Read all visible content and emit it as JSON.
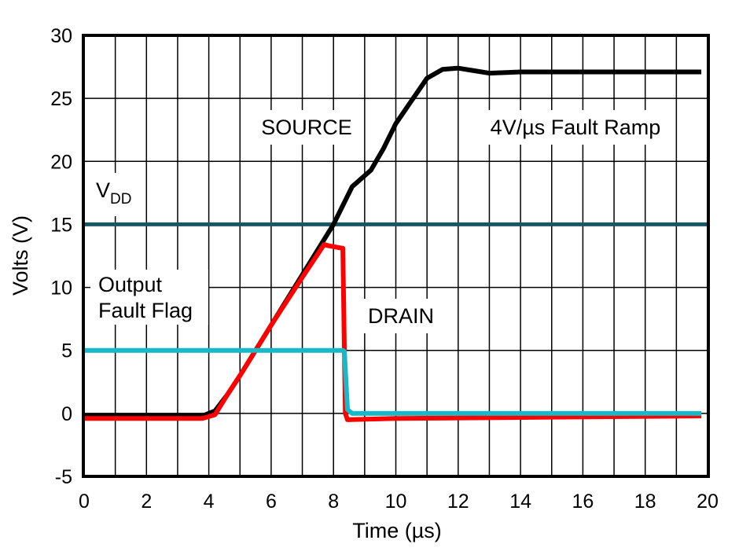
{
  "chart_data": {
    "type": "line",
    "xlabel": "Time (µs)",
    "ylabel": "Volts (V)",
    "xlim": [
      0,
      20
    ],
    "ylim": [
      -5,
      30
    ],
    "xticks": [
      0,
      2,
      4,
      6,
      8,
      10,
      12,
      14,
      16,
      18,
      20
    ],
    "yticks": [
      -5,
      0,
      5,
      10,
      15,
      20,
      25,
      30
    ],
    "grid": true,
    "annotations": {
      "source": "SOURCE",
      "ramp": "4V/µs Fault Ramp",
      "vdd_main": "V",
      "vdd_sub": "DD",
      "flag1": "Output",
      "flag2": "Fault Flag",
      "drain": "DRAIN"
    },
    "series": [
      {
        "name": "VDD",
        "color": "#1a5566",
        "x": [
          0,
          20
        ],
        "y": [
          15,
          15
        ]
      },
      {
        "name": "SOURCE",
        "color": "#000000",
        "x": [
          0,
          3.8,
          4.2,
          4.6,
          5,
          6,
          7,
          8,
          8.3,
          8.6,
          9.2,
          9.6,
          10,
          10.5,
          11,
          11.5,
          12,
          12.5,
          13,
          14,
          16,
          18,
          19.8
        ],
        "y": [
          -0.2,
          -0.2,
          0.2,
          1.5,
          3,
          7,
          11,
          15,
          16.5,
          18,
          19.3,
          21,
          23,
          24.8,
          26.6,
          27.3,
          27.4,
          27.2,
          27.0,
          27.1,
          27.1,
          27.1,
          27.1
        ]
      },
      {
        "name": "DRAIN",
        "color": "#ff0000",
        "x": [
          0,
          3.8,
          4.2,
          4.6,
          5,
          6,
          7,
          7.7,
          7.85,
          8.3,
          8.38,
          8.45,
          10,
          15,
          19.8
        ],
        "y": [
          -0.4,
          -0.4,
          -0.1,
          1.5,
          3,
          7,
          10.8,
          13.4,
          13.3,
          13.1,
          0,
          -0.5,
          -0.4,
          -0.3,
          -0.2
        ]
      },
      {
        "name": "Output Fault Flag",
        "color": "#17b8c8",
        "x": [
          0,
          8.3,
          8.35,
          8.45,
          8.6,
          12,
          19.8
        ],
        "y": [
          5,
          5,
          4.9,
          0.3,
          0,
          0,
          0
        ]
      }
    ]
  }
}
